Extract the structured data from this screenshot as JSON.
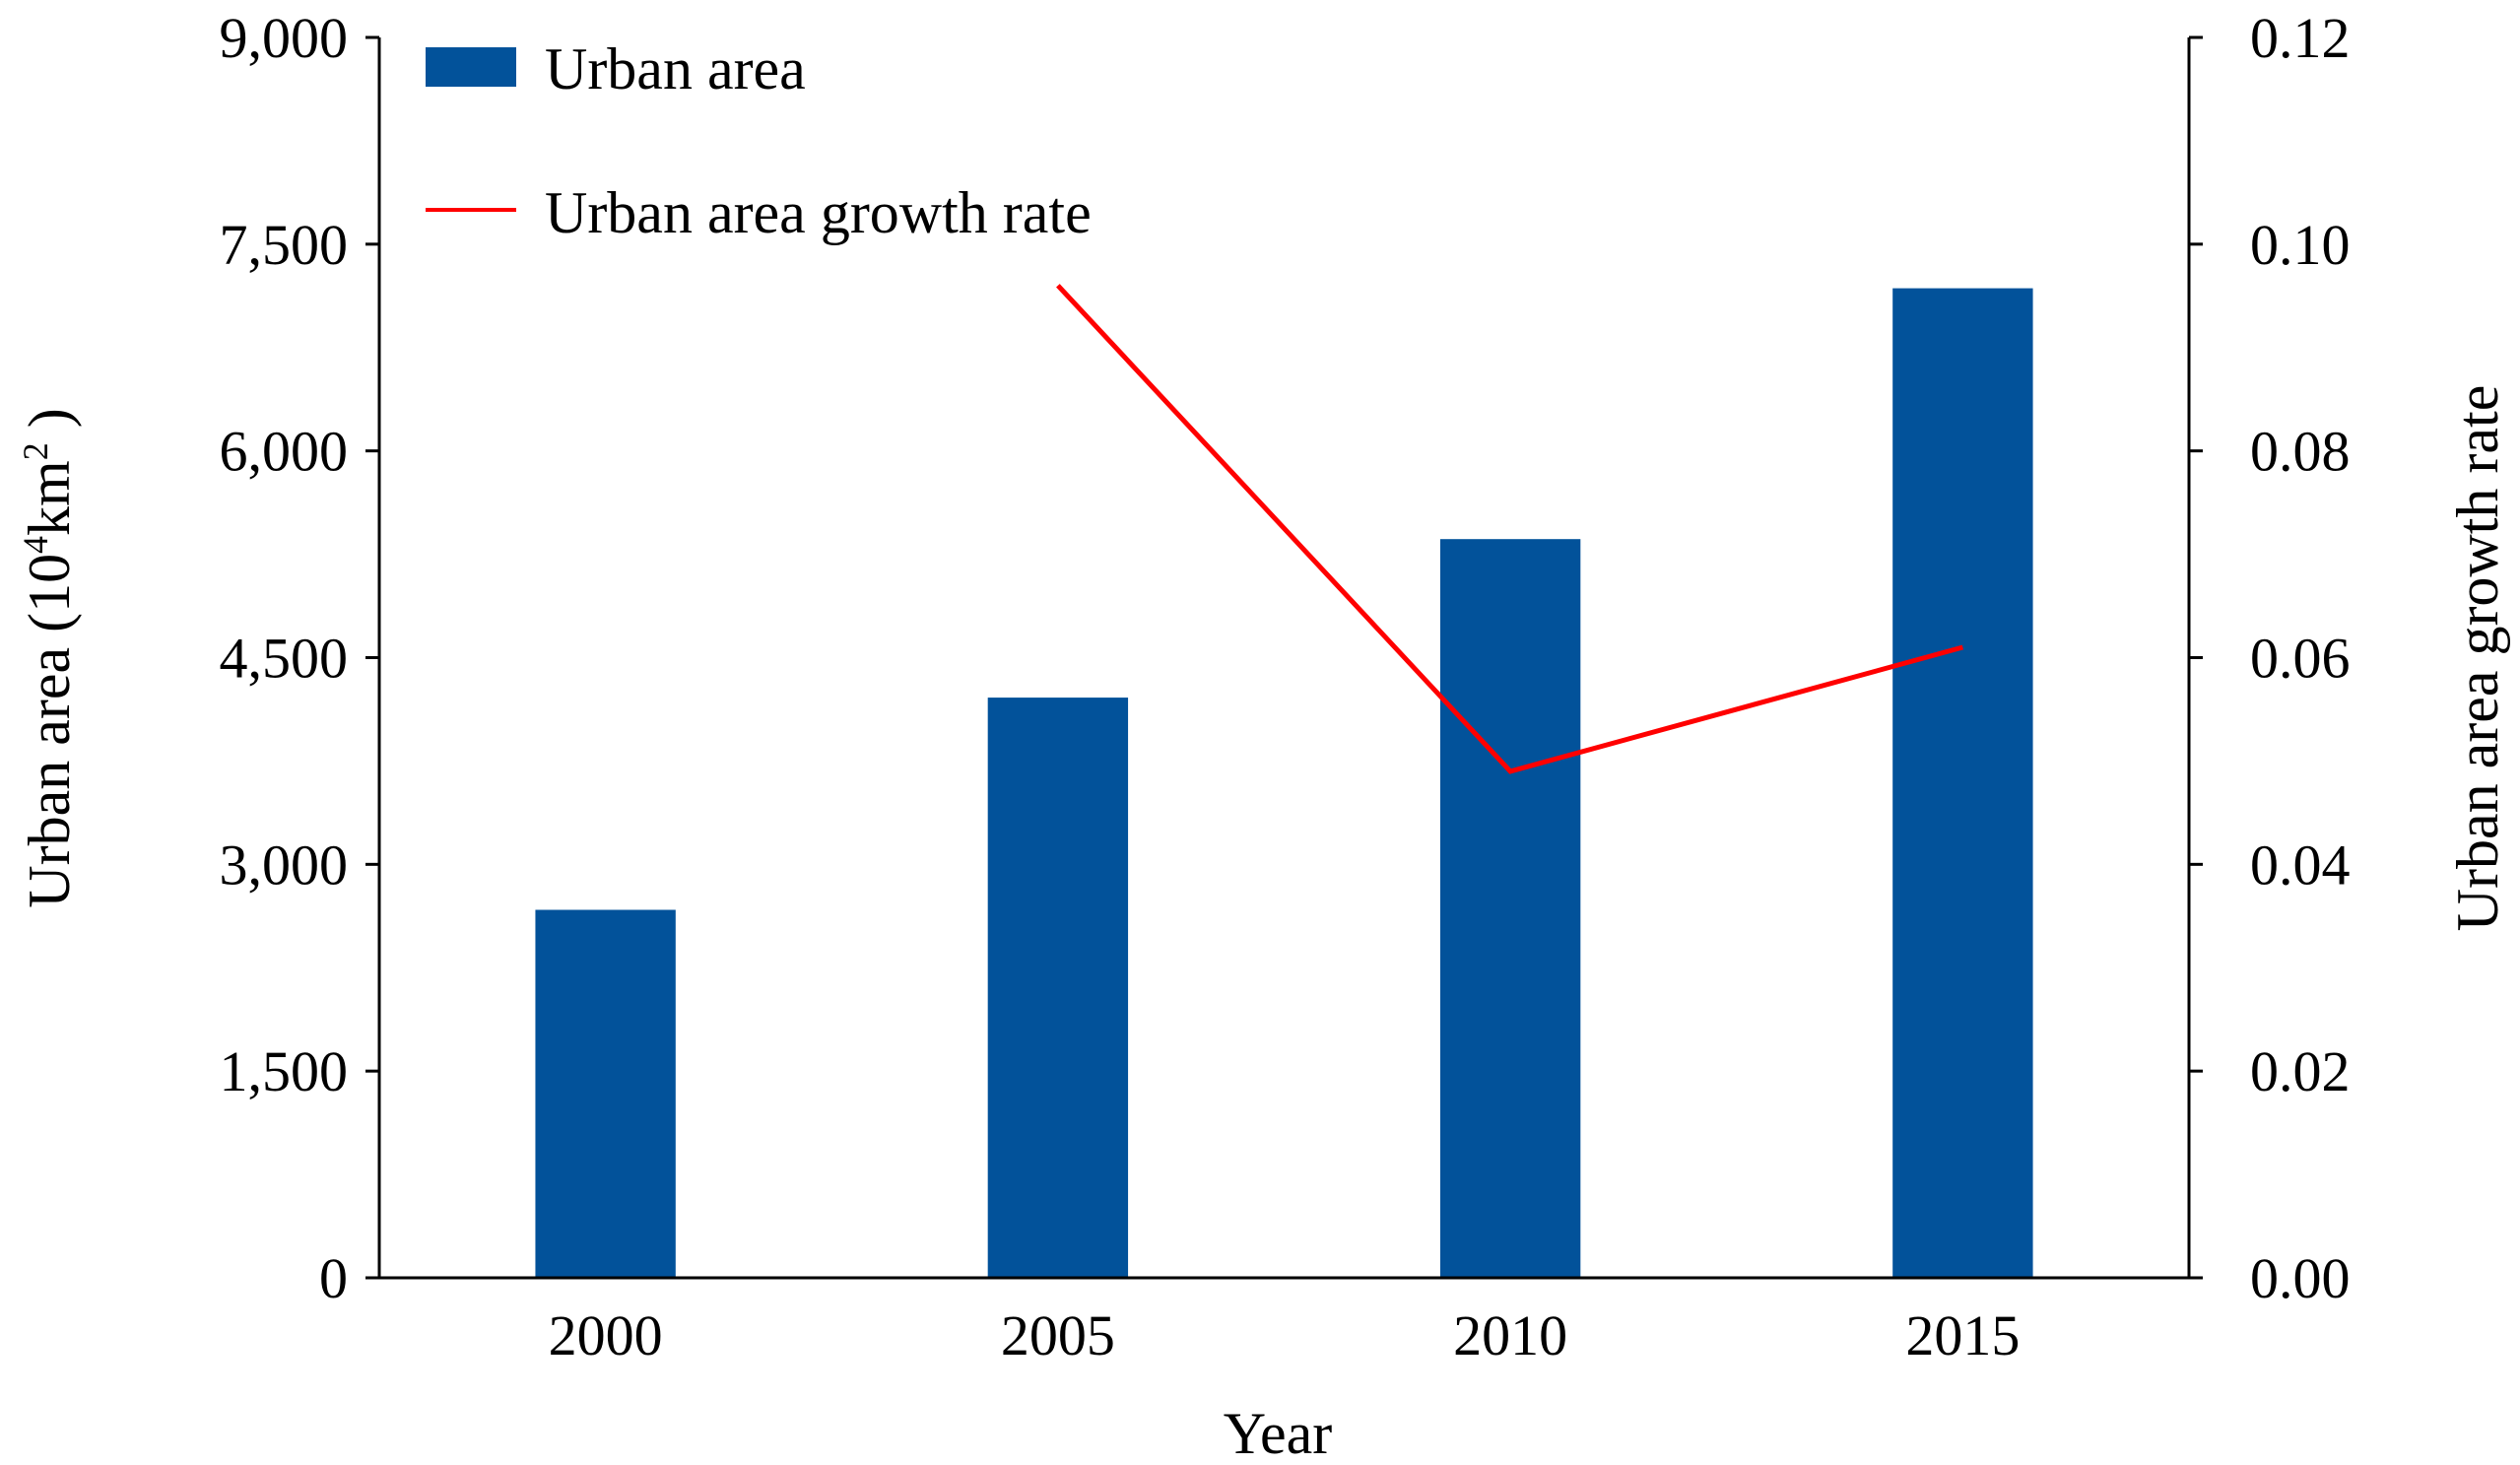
{
  "chart_data": {
    "type": "bar",
    "categories": [
      "2000",
      "2005",
      "2010",
      "2015"
    ],
    "series": [
      {
        "name": "Urban area",
        "type": "bar",
        "axis": "left",
        "color": "#02529A",
        "values": [
          2670,
          4210,
          5360,
          7180
        ]
      },
      {
        "name": "Urban area growth rate",
        "type": "line",
        "axis": "right",
        "color": "#FF0000",
        "values": [
          null,
          0.096,
          0.049,
          0.061
        ]
      }
    ],
    "xlabel": "Year",
    "ylabel_parts": {
      "main": "Urban area (10",
      "sup1": "4",
      "mid": "km",
      "sup2": "2",
      "end": " )"
    },
    "y2label": "Urban area growth rate",
    "ylim": [
      0,
      9000
    ],
    "y2lim": [
      0,
      0.12
    ],
    "yticks": [
      "0",
      "1,500",
      "3,000",
      "4,500",
      "6,000",
      "7,500",
      "9,000"
    ],
    "yticks_values": [
      0,
      1500,
      3000,
      4500,
      6000,
      7500,
      9000
    ],
    "y2ticks": [
      "0.00",
      "0.02",
      "0.04",
      "0.06",
      "0.08",
      "0.10",
      "0.12"
    ],
    "y2ticks_values": [
      0,
      0.02,
      0.04,
      0.06,
      0.08,
      0.1,
      0.12
    ],
    "legend_position": "top-left",
    "grid": false
  }
}
